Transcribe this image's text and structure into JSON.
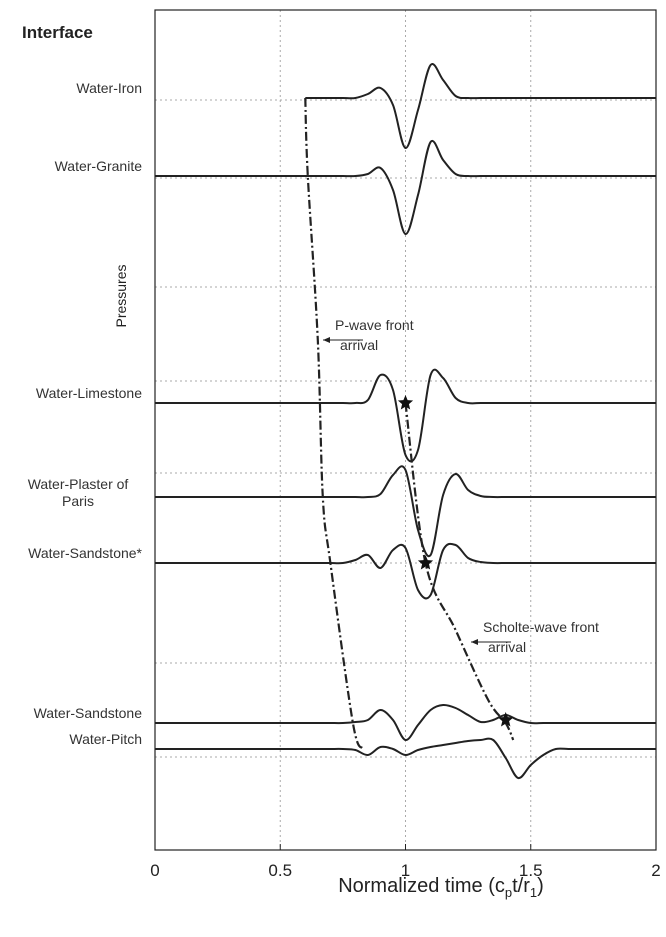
{
  "chart_data": {
    "type": "line",
    "title": "Interface",
    "ylabel": "Pressures",
    "xlabel_parts": [
      "Normalized time (c",
      "p",
      "t/r",
      "1",
      ")"
    ],
    "xlim": [
      0,
      2
    ],
    "xticks": [
      0,
      0.5,
      1,
      {
        "value": 1.5,
        "label": "1.5"
      },
      2
    ],
    "ylim": [
      0,
      8.4
    ],
    "ygrid": [
      7.5,
      6.72,
      5.63,
      4.69,
      3.77,
      2.87,
      1.87,
      0.93
    ],
    "grid": true,
    "x": [
      0,
      0.05,
      0.1,
      0.15,
      0.2,
      0.25,
      0.3,
      0.35,
      0.4,
      0.45,
      0.5,
      0.55,
      0.6,
      0.65,
      0.7,
      0.75,
      0.8,
      0.85,
      0.9,
      0.95,
      1,
      1.05,
      1.1,
      1.15,
      1.2,
      1.25,
      1.3,
      1.35,
      1.4,
      1.45,
      1.5,
      1.55,
      1.6,
      1.65,
      1.7,
      1.75,
      1.8,
      1.85,
      1.9,
      1.95,
      2
    ],
    "series": [
      {
        "name": "Water-Iron",
        "color": "#222222",
        "values": [
          null,
          null,
          null,
          null,
          null,
          null,
          null,
          null,
          null,
          null,
          null,
          null,
          7.52,
          7.52,
          7.52,
          7.52,
          7.52,
          7.56,
          7.62,
          7.45,
          7.02,
          7.4,
          7.85,
          7.7,
          7.54,
          7.52,
          7.52,
          7.52,
          7.52,
          7.52,
          7.52,
          7.52,
          7.52,
          7.52,
          7.52,
          7.52,
          7.52,
          7.52,
          7.52,
          7.52,
          7.52
        ]
      },
      {
        "name": "Water-Granite",
        "color": "#222222",
        "values": [
          6.74,
          6.74,
          6.74,
          6.74,
          6.74,
          6.74,
          6.74,
          6.74,
          6.74,
          6.74,
          6.74,
          6.74,
          6.74,
          6.74,
          6.74,
          6.74,
          6.74,
          6.76,
          6.82,
          6.6,
          6.16,
          6.55,
          7.08,
          6.9,
          6.76,
          6.74,
          6.74,
          6.74,
          6.74,
          6.74,
          6.74,
          6.74,
          6.74,
          6.74,
          6.74,
          6.74,
          6.74,
          6.74,
          6.74,
          6.74,
          6.74
        ]
      },
      {
        "name": "Water-Limestone",
        "color": "#222222",
        "values": [
          4.47,
          4.47,
          4.47,
          4.47,
          4.47,
          4.47,
          4.47,
          4.47,
          4.47,
          4.47,
          4.47,
          4.47,
          4.47,
          4.47,
          4.47,
          4.47,
          4.47,
          4.5,
          4.75,
          4.6,
          3.95,
          4.0,
          4.75,
          4.72,
          4.52,
          4.47,
          4.47,
          4.47,
          4.47,
          4.47,
          4.47,
          4.47,
          4.47,
          4.47,
          4.47,
          4.47,
          4.47,
          4.47,
          4.47,
          4.47,
          4.47
        ]
      },
      {
        "name": "Water-Plaster of Paris",
        "color": "#222222",
        "values": [
          3.53,
          3.53,
          3.53,
          3.53,
          3.53,
          3.53,
          3.53,
          3.53,
          3.53,
          3.53,
          3.53,
          3.53,
          3.53,
          3.53,
          3.53,
          3.53,
          3.53,
          3.53,
          3.56,
          3.75,
          3.8,
          3.2,
          2.95,
          3.55,
          3.76,
          3.6,
          3.54,
          3.53,
          3.53,
          3.53,
          3.53,
          3.53,
          3.53,
          3.53,
          3.53,
          3.53,
          3.53,
          3.53,
          3.53,
          3.53,
          3.53
        ]
      },
      {
        "name": "Water-Sandstone*",
        "color": "#222222",
        "values": [
          2.87,
          2.87,
          2.87,
          2.87,
          2.87,
          2.87,
          2.87,
          2.87,
          2.87,
          2.87,
          2.87,
          2.87,
          2.87,
          2.87,
          2.87,
          2.87,
          2.9,
          2.95,
          2.82,
          3.0,
          3.02,
          2.6,
          2.55,
          3.0,
          3.05,
          2.92,
          2.88,
          2.87,
          2.87,
          2.87,
          2.87,
          2.87,
          2.87,
          2.87,
          2.87,
          2.87,
          2.87,
          2.87,
          2.87,
          2.87,
          2.87
        ]
      },
      {
        "name": "Water-Sandstone",
        "color": "#222222",
        "values": [
          1.27,
          1.27,
          1.27,
          1.27,
          1.27,
          1.27,
          1.27,
          1.27,
          1.27,
          1.27,
          1.27,
          1.27,
          1.27,
          1.27,
          1.27,
          1.27,
          1.28,
          1.3,
          1.4,
          1.3,
          1.1,
          1.25,
          1.4,
          1.45,
          1.42,
          1.35,
          1.28,
          1.3,
          1.35,
          1.3,
          1.27,
          1.27,
          1.27,
          1.27,
          1.27,
          1.27,
          1.27,
          1.27,
          1.27,
          1.27,
          1.27
        ]
      },
      {
        "name": "Water-Pitch",
        "color": "#222222",
        "values": [
          1.01,
          1.01,
          1.01,
          1.01,
          1.01,
          1.01,
          1.01,
          1.01,
          1.01,
          1.01,
          1.01,
          1.01,
          1.01,
          1.01,
          1.01,
          1.01,
          1.0,
          0.95,
          1.03,
          1.01,
          0.95,
          1.0,
          1.03,
          1.05,
          1.07,
          1.09,
          1.1,
          1.1,
          0.92,
          0.72,
          0.85,
          0.95,
          1.01,
          1.01,
          1.01,
          1.01,
          1.01,
          1.01,
          1.01,
          1.01,
          1.01
        ]
      }
    ],
    "fronts": [
      {
        "lines": [
          "P-wave front",
          "arrival"
        ],
        "x": [
          0.6,
          0.61,
          0.65,
          0.67,
          0.7,
          0.79,
          0.83
        ],
        "y": [
          7.52,
          6.74,
          5.1,
          3.53,
          2.87,
          1.27,
          1.01
        ]
      },
      {
        "lines": [
          "Scholte-wave front",
          "arrival"
        ],
        "x": [
          1.0,
          1.08,
          1.2,
          1.33,
          1.4,
          1.43
        ],
        "y": [
          4.47,
          2.87,
          2.2,
          1.5,
          1.27,
          1.1
        ]
      }
    ],
    "stars": {
      "x": [
        1.0,
        1.08,
        1.4
      ],
      "y": [
        4.47,
        2.87,
        1.3
      ]
    }
  }
}
